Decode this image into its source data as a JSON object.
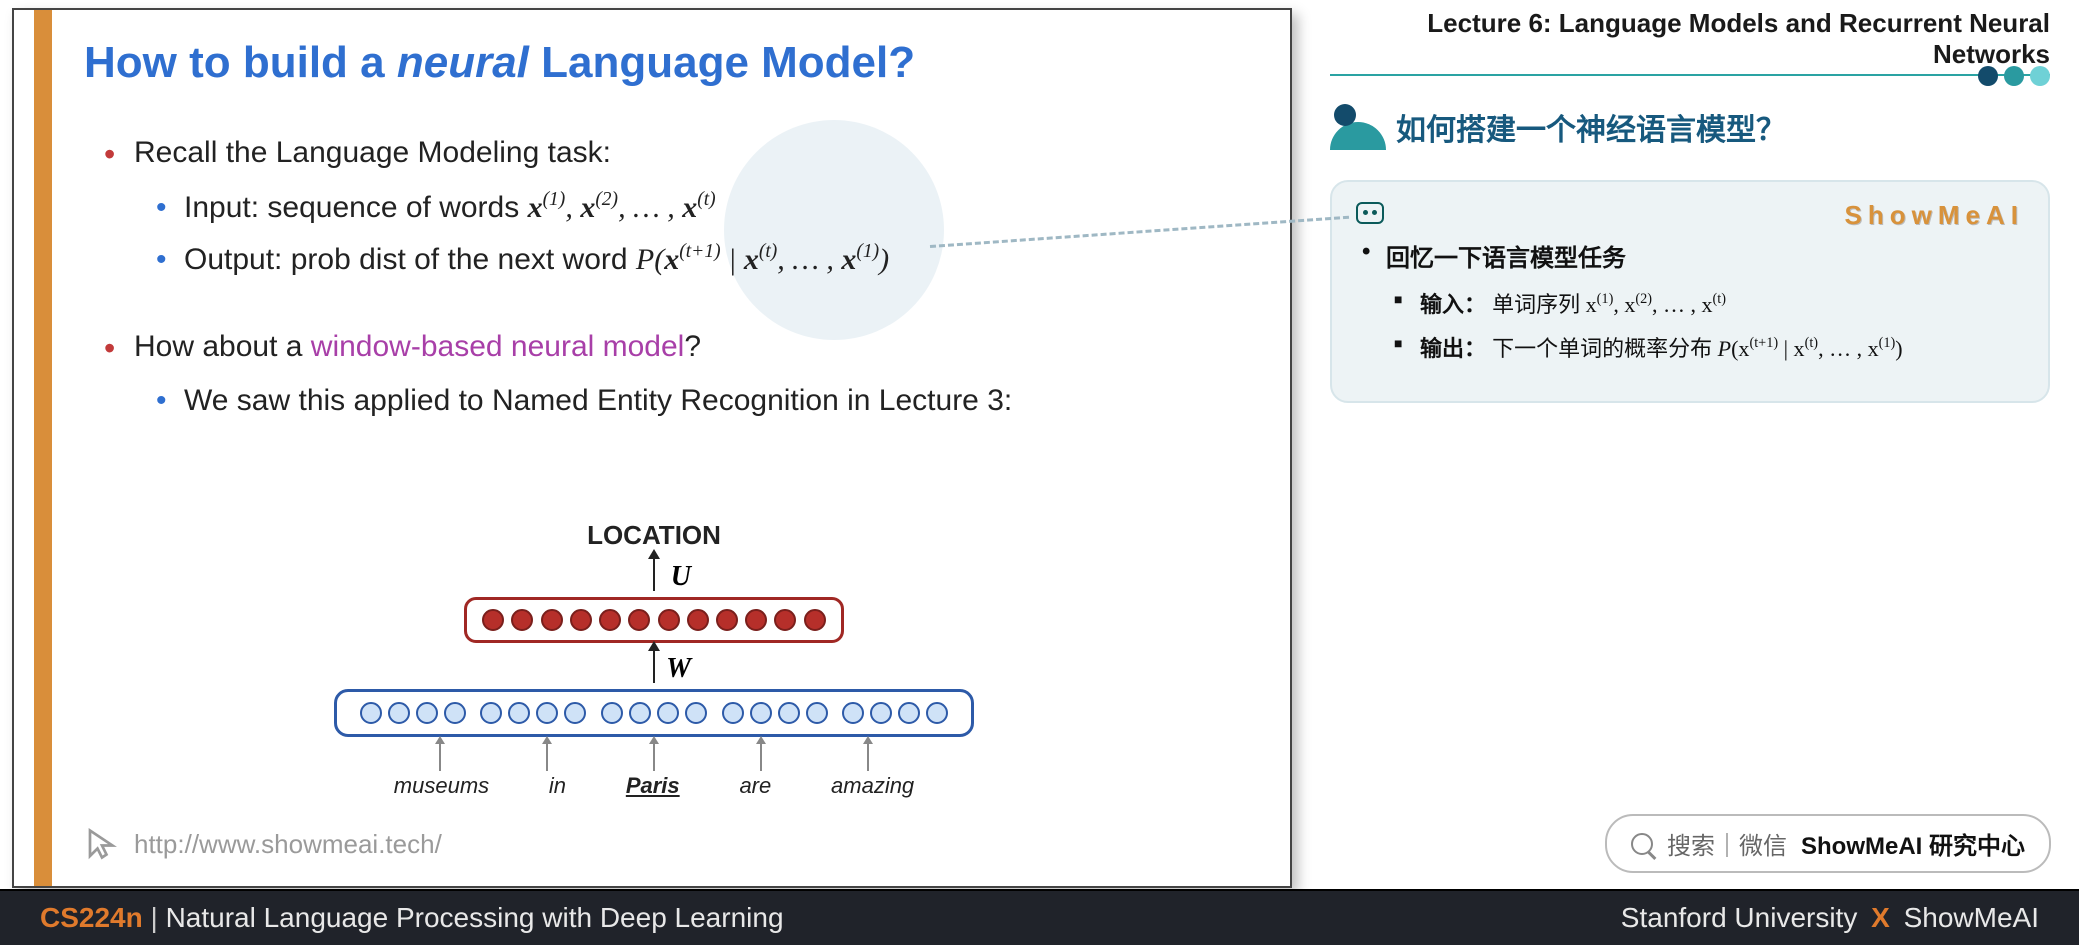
{
  "lecture": {
    "header": "Lecture 6:  Language Models and Recurrent Neural Networks",
    "dot_colors": [
      "#134b6b",
      "#2a9aa0",
      "#6fd1d6"
    ]
  },
  "slide": {
    "title_prefix": "How to build a ",
    "title_italic": "neural",
    "title_suffix": " Language Model?",
    "bullet1": "Recall the Language Modeling task:",
    "bullet1a": "Input: sequence of words ",
    "bullet1a_math": "x(1), x(2), … , x(t)",
    "bullet1b": "Output: prob dist of the next word ",
    "bullet1b_math": "P(x(t+1) | x(t), … , x(1))",
    "bullet2_pre": "How about a ",
    "bullet2_purple": "window-based neural model",
    "bullet2_suf": "?",
    "bullet2a": "We saw this applied to Named Entity Recognition in Lecture 3:",
    "url": "http://www.showmeai.tech/"
  },
  "diagram": {
    "output_label": "LOCATION",
    "u_label": "U",
    "w_label": "W",
    "hidden_units": 12,
    "hidden_color_fill": "#b62f2a",
    "hidden_color_border": "#7a1f1c",
    "hidden_box_border": "#a02824",
    "input_groups": 5,
    "input_per_group": 4,
    "input_color_fill": "#cfe2f7",
    "input_color_border": "#2d5aa8",
    "input_box_border": "#2d5aa8",
    "words": [
      "museums",
      "in",
      "Paris",
      "are",
      "amazing"
    ],
    "underline_index": 2
  },
  "section": {
    "title": "如何搭建一个神经语言模型？"
  },
  "callout": {
    "brand": "ShowMeAI",
    "li1": "回忆一下语言模型任务",
    "li1a_label": "输入：",
    "li1a_text": "单词序列 x(1), x(2), … , x(t)",
    "li1b_label": "输出：",
    "li1b_text": "下一个单词的概率分布 P(x(t+1) | x(t), … , x(1))"
  },
  "search": {
    "hint": "搜索｜微信 ",
    "strong": "ShowMeAI 研究中心"
  },
  "footer": {
    "course": "CS224n",
    "subtitle": "Natural Language Processing with Deep Learning",
    "right_a": "Stanford University",
    "right_b": "ShowMeAI"
  },
  "colors": {
    "title_blue": "#2f6fd0",
    "bullet_red": "#c23a3a",
    "purple": "#a83fa8",
    "orange_bar": "#d98e3a",
    "footer_bg": "#20232a",
    "footer_orange": "#e07a2c",
    "callout_bg": "#edf3f5",
    "teal": "#17597e"
  }
}
